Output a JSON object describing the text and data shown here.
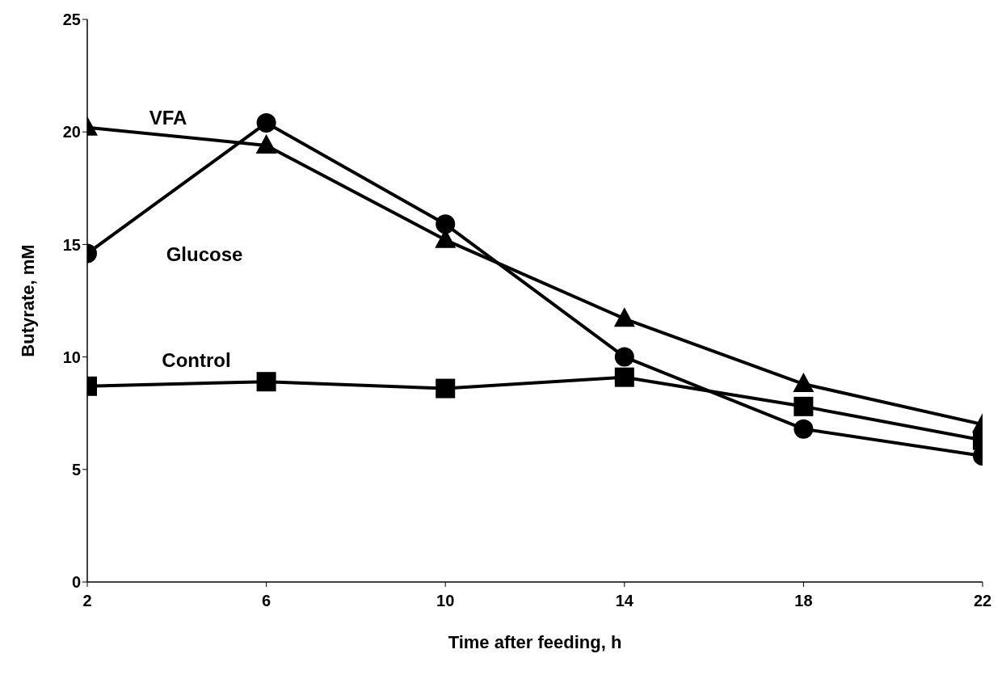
{
  "chart_data": {
    "type": "line",
    "xlabel": "Time after feeding, h",
    "ylabel": "Butyrate, mM",
    "x": [
      2,
      6,
      10,
      14,
      18,
      22
    ],
    "series": [
      {
        "color": "#000000",
        "marker": "triangle",
        "values": [
          20.2,
          19.4,
          15.2,
          11.7,
          8.8,
          7.0
        ]
      },
      {
        "color": "#000000",
        "marker": "circle",
        "values": [
          14.6,
          20.4,
          15.9,
          10.0,
          6.8,
          5.6
        ]
      },
      {
        "color": "#000000",
        "marker": "square",
        "values": [
          8.7,
          8.9,
          8.6,
          9.1,
          7.8,
          6.3
        ]
      }
    ],
    "annotations": [
      "VFA",
      "Glucose",
      "Control"
    ],
    "xlim": [
      2,
      22
    ],
    "xticks": [
      2,
      6,
      10,
      14,
      18,
      22
    ],
    "ylim": [
      0,
      25
    ],
    "yticks": [
      0,
      5,
      10,
      15,
      20,
      25
    ],
    "grid": false,
    "line_style": "solid"
  }
}
